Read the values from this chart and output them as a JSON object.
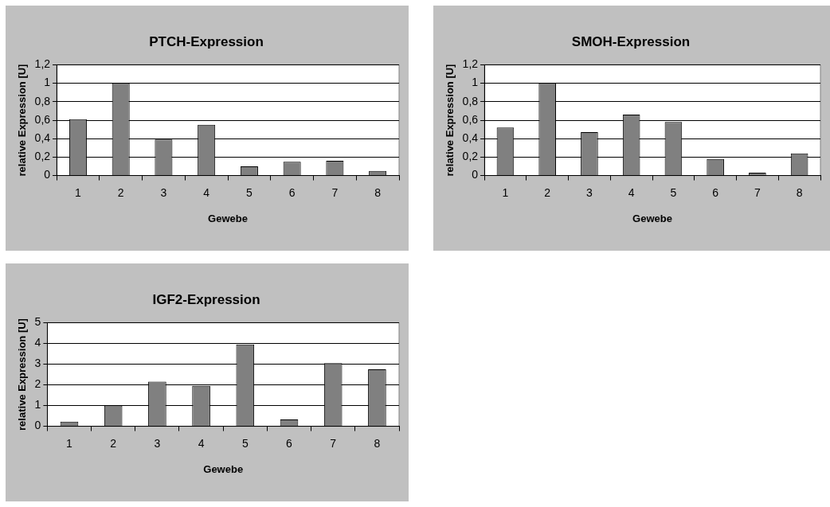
{
  "chart_data": [
    {
      "type": "bar",
      "title": "PTCH-Expression",
      "xlabel": "Gewebe",
      "ylabel": "relative Expression [U]",
      "categories": [
        "1",
        "2",
        "3",
        "4",
        "5",
        "6",
        "7",
        "8"
      ],
      "values": [
        0.61,
        1.0,
        0.39,
        0.55,
        0.1,
        0.15,
        0.16,
        0.05
      ],
      "color": "#808080",
      "ylim": [
        0,
        1.2
      ],
      "yticks": [
        0,
        {
          "value": 0.2,
          "label": "0,2"
        },
        {
          "value": 0.4,
          "label": "0,4"
        },
        {
          "value": 0.6,
          "label": "0,6"
        },
        {
          "value": 0.8,
          "label": "0,8"
        },
        1,
        {
          "value": 1.2,
          "label": "1,2"
        }
      ],
      "grid": "y",
      "legend": false
    },
    {
      "type": "bar",
      "title": "SMOH-Expression",
      "xlabel": "Gewebe",
      "ylabel": "relative Expression [U]",
      "categories": [
        "1",
        "2",
        "3",
        "4",
        "5",
        "6",
        "7",
        "8"
      ],
      "values": [
        0.52,
        1.0,
        0.47,
        0.66,
        0.58,
        0.18,
        0.03,
        0.24
      ],
      "color": "#808080",
      "ylim": [
        0,
        1.2
      ],
      "yticks": [
        0,
        {
          "value": 0.2,
          "label": "0,2"
        },
        {
          "value": 0.4,
          "label": "0,4"
        },
        {
          "value": 0.6,
          "label": "0,6"
        },
        {
          "value": 0.8,
          "label": "0,8"
        },
        1,
        {
          "value": 1.2,
          "label": "1,2"
        }
      ],
      "grid": "y",
      "legend": false
    },
    {
      "type": "bar",
      "title": "IGF2-Expression",
      "xlabel": "Gewebe",
      "ylabel": "relative Expression [U]",
      "categories": [
        "1",
        "2",
        "3",
        "4",
        "5",
        "6",
        "7",
        "8"
      ],
      "values": [
        0.22,
        1.0,
        2.15,
        1.95,
        3.95,
        0.33,
        3.05,
        2.75
      ],
      "color": "#808080",
      "ylim": [
        0,
        5
      ],
      "yticks": [
        0,
        1,
        2,
        3,
        4,
        5
      ],
      "grid": "y",
      "legend": false
    }
  ]
}
